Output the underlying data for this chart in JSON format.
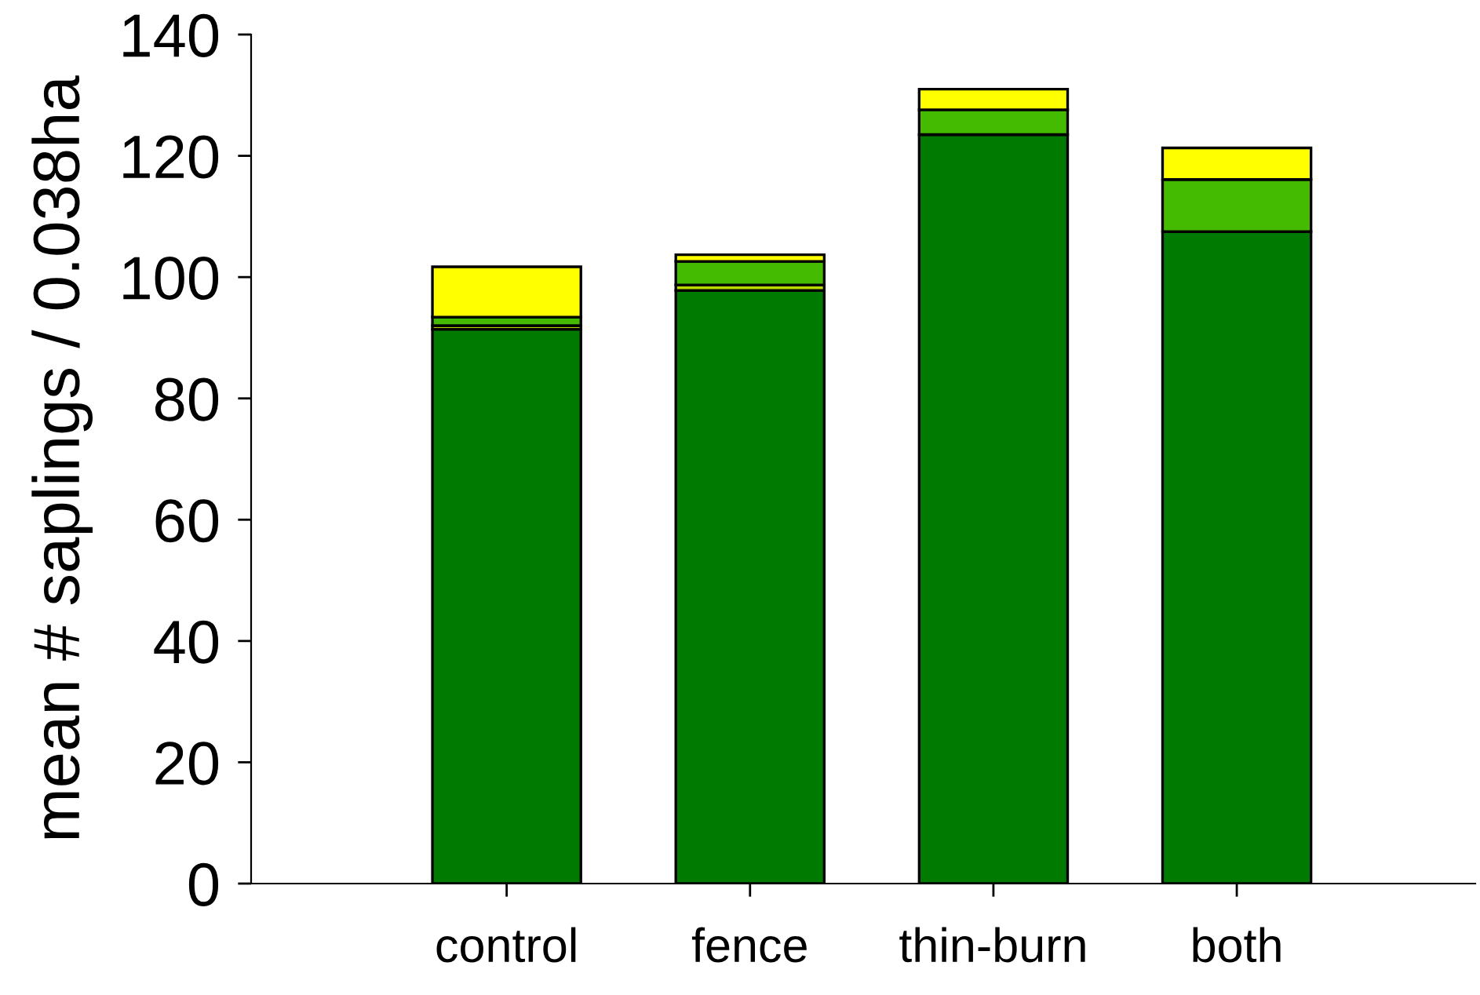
{
  "chart_data": {
    "type": "bar",
    "stacked": true,
    "ylabel": "mean # saplings / 0.038ha",
    "categories": [
      "control",
      "fence",
      "thin-burn",
      "both"
    ],
    "series": [
      {
        "color": "#007a00",
        "values": [
          91.4,
          97.8,
          123.5,
          107.5
        ]
      },
      {
        "color": "#b8d800",
        "values": [
          0.6,
          0.9,
          null,
          null
        ]
      },
      {
        "color": "#44bb00",
        "values": [
          1.4,
          3.9,
          4.1,
          8.6
        ]
      },
      {
        "color": "#ffff00",
        "values": [
          8.3,
          1.1,
          3.4,
          5.2
        ]
      }
    ],
    "ylim": [
      0,
      140
    ],
    "yticks": [
      0,
      20,
      40,
      60,
      80,
      100,
      120,
      140
    ],
    "grid": false,
    "legend": false
  }
}
